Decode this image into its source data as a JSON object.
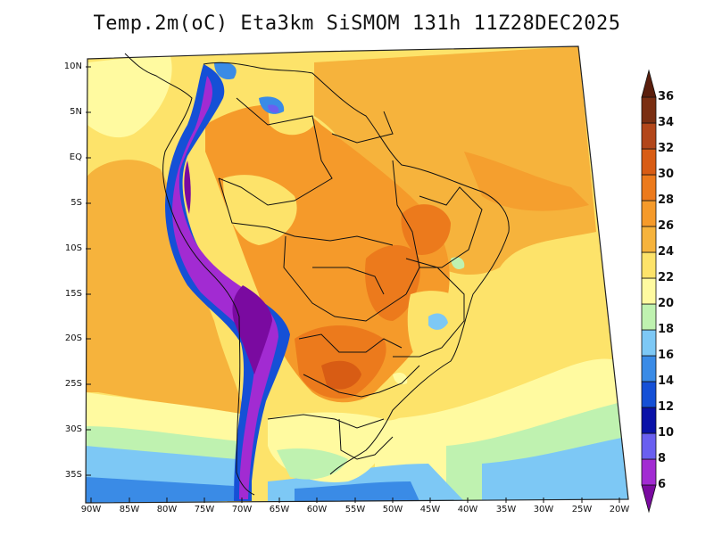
{
  "title": "Temp.2m(oC) Eta3km SiSMOM 131h 11Z28DEC2025",
  "map": {
    "variable": "2 m air temperature",
    "unit": "oC",
    "lat_labels": [
      "10N",
      "5N",
      "EQ",
      "5S",
      "10S",
      "15S",
      "20S",
      "25S",
      "30S",
      "35S"
    ],
    "lon_labels": [
      "90W",
      "85W",
      "80W",
      "75W",
      "70W",
      "65W",
      "60W",
      "55W",
      "50W",
      "45W",
      "40W",
      "35W",
      "30W",
      "25W",
      "20W"
    ]
  },
  "legend": {
    "levels": [
      "6",
      "8",
      "10",
      "12",
      "14",
      "16",
      "18",
      "20",
      "22",
      "24",
      "26",
      "28",
      "30",
      "32",
      "34",
      "36"
    ],
    "colors": [
      "#7a0aa0",
      "#a22bd2",
      "#6a5ff0",
      "#0a12a8",
      "#1550d6",
      "#3a8be6",
      "#7dc8f5",
      "#bff2b0",
      "#fffaa0",
      "#fde36a",
      "#f6b33c",
      "#f59a2a",
      "#ec7a1c",
      "#d85c14",
      "#b2461a",
      "#7a2e12",
      "#5a1e0c"
    ]
  }
}
